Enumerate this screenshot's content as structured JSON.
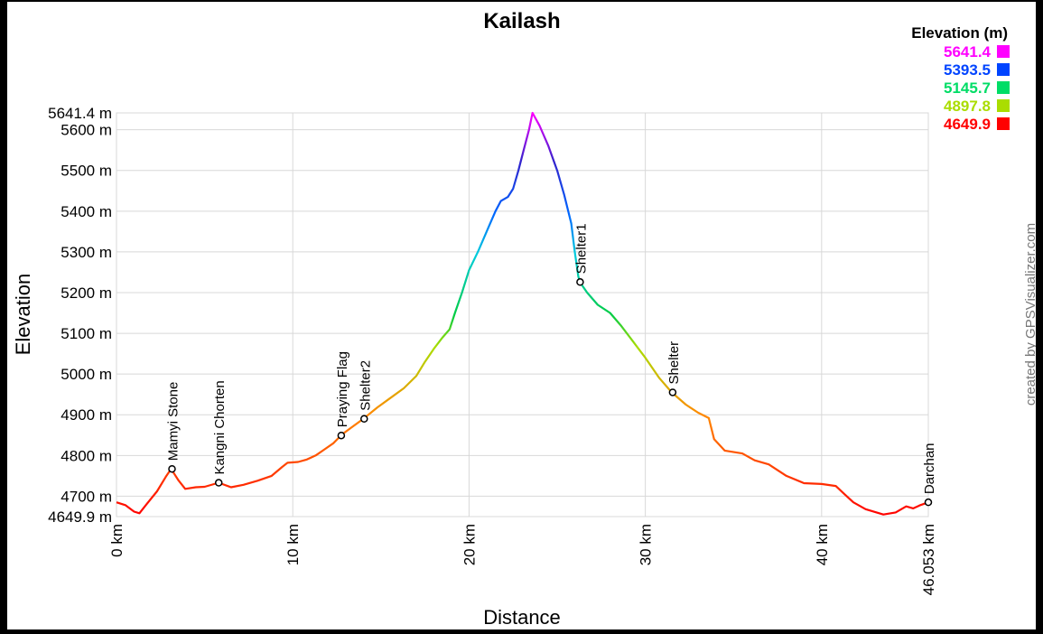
{
  "chart_data": {
    "type": "line",
    "title": "Kailash",
    "xlabel": "Distance",
    "ylabel": "Elevation",
    "credit": "created by GPSVisualizer.com",
    "xlim": [
      0,
      46.053
    ],
    "ylim": [
      4649.9,
      5641.4
    ],
    "x_ticks": [
      {
        "value": 0,
        "label": "0 km"
      },
      {
        "value": 10,
        "label": "10 km"
      },
      {
        "value": 20,
        "label": "20 km"
      },
      {
        "value": 30,
        "label": "30 km"
      },
      {
        "value": 40,
        "label": "40 km"
      },
      {
        "value": 46.053,
        "label": "46.053 km"
      }
    ],
    "y_ticks": [
      {
        "value": 4649.9,
        "label": "4649.9 m"
      },
      {
        "value": 4700,
        "label": "4700 m"
      },
      {
        "value": 4800,
        "label": "4800 m"
      },
      {
        "value": 4900,
        "label": "4900 m"
      },
      {
        "value": 5000,
        "label": "5000 m"
      },
      {
        "value": 5100,
        "label": "5100 m"
      },
      {
        "value": 5200,
        "label": "5200 m"
      },
      {
        "value": 5300,
        "label": "5300 m"
      },
      {
        "value": 5400,
        "label": "5400 m"
      },
      {
        "value": 5500,
        "label": "5500 m"
      },
      {
        "value": 5600,
        "label": "5600 m"
      },
      {
        "value": 5641.4,
        "label": "5641.4 m"
      }
    ],
    "legend": {
      "title": "Elevation (m)",
      "position": "top-right",
      "entries": [
        {
          "label": "5641.4",
          "color": "#ff00ff"
        },
        {
          "label": "5393.5",
          "color": "#0044ff"
        },
        {
          "label": "5145.7",
          "color": "#00dd66"
        },
        {
          "label": "4897.8",
          "color": "#aadd00"
        },
        {
          "label": "4649.9",
          "color": "#ff0000"
        }
      ]
    },
    "series": [
      {
        "points": [
          [
            0,
            4685
          ],
          [
            0.5,
            4678
          ],
          [
            1.0,
            4662
          ],
          [
            1.3,
            4658
          ],
          [
            1.7,
            4680
          ],
          [
            2.3,
            4712
          ],
          [
            2.8,
            4748
          ],
          [
            3.1,
            4767
          ],
          [
            3.5,
            4740
          ],
          [
            3.9,
            4718
          ],
          [
            4.5,
            4722
          ],
          [
            5.0,
            4723
          ],
          [
            5.8,
            4733
          ],
          [
            6.5,
            4722
          ],
          [
            7.2,
            4728
          ],
          [
            8.0,
            4738
          ],
          [
            8.8,
            4750
          ],
          [
            9.4,
            4772
          ],
          [
            9.7,
            4782
          ],
          [
            10.3,
            4784
          ],
          [
            10.8,
            4790
          ],
          [
            11.3,
            4800
          ],
          [
            11.8,
            4815
          ],
          [
            12.3,
            4830
          ],
          [
            12.8,
            4852
          ],
          [
            13.3,
            4868
          ],
          [
            14.0,
            4890
          ],
          [
            14.8,
            4918
          ],
          [
            15.5,
            4940
          ],
          [
            16.3,
            4965
          ],
          [
            17.0,
            4995
          ],
          [
            17.5,
            5030
          ],
          [
            18.0,
            5062
          ],
          [
            18.5,
            5090
          ],
          [
            18.9,
            5110
          ],
          [
            19.2,
            5150
          ],
          [
            19.6,
            5200
          ],
          [
            20.0,
            5255
          ],
          [
            20.5,
            5300
          ],
          [
            21.0,
            5350
          ],
          [
            21.5,
            5400
          ],
          [
            21.8,
            5425
          ],
          [
            22.2,
            5435
          ],
          [
            22.5,
            5455
          ],
          [
            22.8,
            5500
          ],
          [
            23.1,
            5550
          ],
          [
            23.4,
            5600
          ],
          [
            23.6,
            5641.4
          ],
          [
            24.0,
            5610
          ],
          [
            24.5,
            5560
          ],
          [
            25.0,
            5500
          ],
          [
            25.4,
            5440
          ],
          [
            25.8,
            5370
          ],
          [
            26.0,
            5300
          ],
          [
            26.2,
            5240
          ],
          [
            26.3,
            5225
          ],
          [
            26.7,
            5200
          ],
          [
            27.3,
            5170
          ],
          [
            28.0,
            5150
          ],
          [
            28.6,
            5120
          ],
          [
            29.3,
            5080
          ],
          [
            30.0,
            5040
          ],
          [
            30.8,
            4990
          ],
          [
            31.5,
            4955
          ],
          [
            32.3,
            4925
          ],
          [
            33.0,
            4905
          ],
          [
            33.6,
            4892
          ],
          [
            33.9,
            4840
          ],
          [
            34.5,
            4812
          ],
          [
            35.5,
            4805
          ],
          [
            36.2,
            4788
          ],
          [
            37.0,
            4778
          ],
          [
            38.0,
            4750
          ],
          [
            39.0,
            4732
          ],
          [
            40.0,
            4730
          ],
          [
            40.8,
            4725
          ],
          [
            41.3,
            4705
          ],
          [
            41.8,
            4685
          ],
          [
            42.5,
            4668
          ],
          [
            43.5,
            4655
          ],
          [
            44.2,
            4660
          ],
          [
            44.8,
            4675
          ],
          [
            45.2,
            4670
          ],
          [
            45.6,
            4678
          ],
          [
            46.053,
            4685
          ]
        ]
      }
    ],
    "waypoints": [
      {
        "name": "Mamyi Stone",
        "x": 3.15,
        "y": 4767
      },
      {
        "name": "Kangni Chorten",
        "x": 5.8,
        "y": 4733
      },
      {
        "name": "Praying Flag",
        "x": 12.75,
        "y": 4849
      },
      {
        "name": "Shelter2",
        "x": 14.05,
        "y": 4890
      },
      {
        "name": "Shelter1",
        "x": 26.3,
        "y": 5226
      },
      {
        "name": "Shelter",
        "x": 31.55,
        "y": 4955
      },
      {
        "name": "Darchan",
        "x": 46.053,
        "y": 4685
      }
    ]
  }
}
